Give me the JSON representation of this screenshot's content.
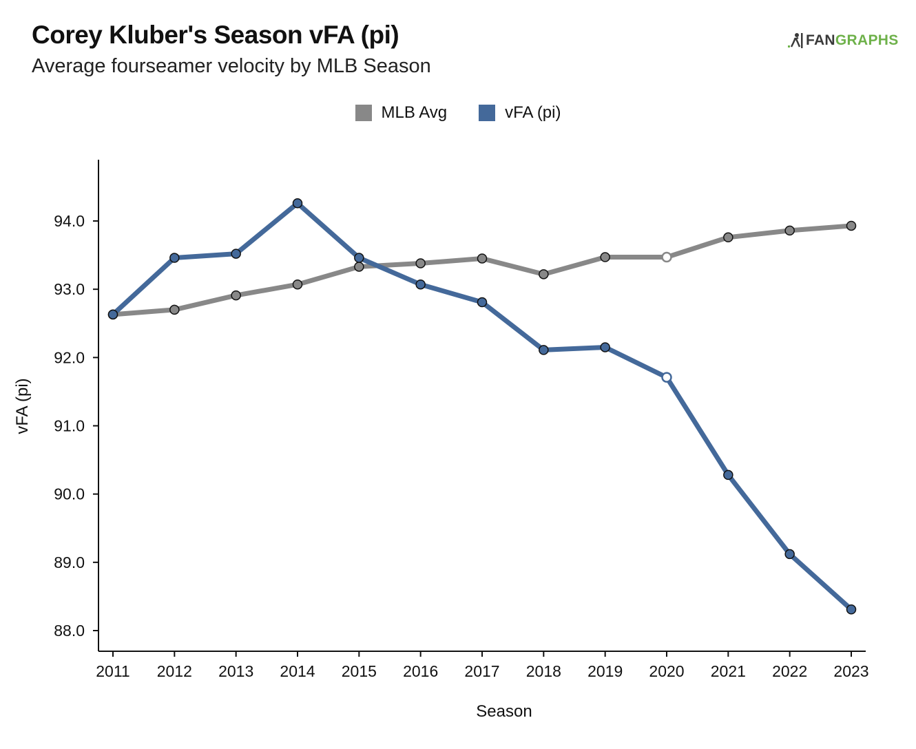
{
  "header": {
    "title": "Corey Kluber's Season vFA (pi)",
    "subtitle": "Average fourseamer velocity by MLB Season",
    "logo_text_1": "FAN",
    "logo_text_2": "GRAPHS"
  },
  "colors": {
    "mlb_avg": "#888888",
    "vfa": "#44699a",
    "axis": "#111111",
    "logo_green": "#6eb14a"
  },
  "chart_data": {
    "type": "line",
    "title": "Corey Kluber's Season vFA (pi)",
    "subtitle": "Average fourseamer velocity by MLB Season",
    "xlabel": "Season",
    "ylabel": "vFA (pi)",
    "x": [
      2011,
      2012,
      2013,
      2014,
      2015,
      2016,
      2017,
      2018,
      2019,
      2020,
      2021,
      2022,
      2023
    ],
    "ylim": [
      87.7,
      94.9
    ],
    "yticks": [
      "88.0",
      "89.0",
      "90.0",
      "91.0",
      "92.0",
      "93.0",
      "94.0"
    ],
    "grid": false,
    "legend_position": "top-center",
    "highlighted_x": 2020,
    "series": [
      {
        "name": "MLB Avg",
        "color": "#888888",
        "values": [
          92.63,
          92.7,
          92.91,
          93.07,
          93.33,
          93.38,
          93.45,
          93.22,
          93.47,
          93.47,
          93.76,
          93.86,
          93.93
        ]
      },
      {
        "name": "vFA (pi)",
        "color": "#44699a",
        "values": [
          92.63,
          93.46,
          93.52,
          94.26,
          93.46,
          93.07,
          92.81,
          92.11,
          92.15,
          91.71,
          90.28,
          89.12,
          88.31
        ]
      }
    ]
  }
}
